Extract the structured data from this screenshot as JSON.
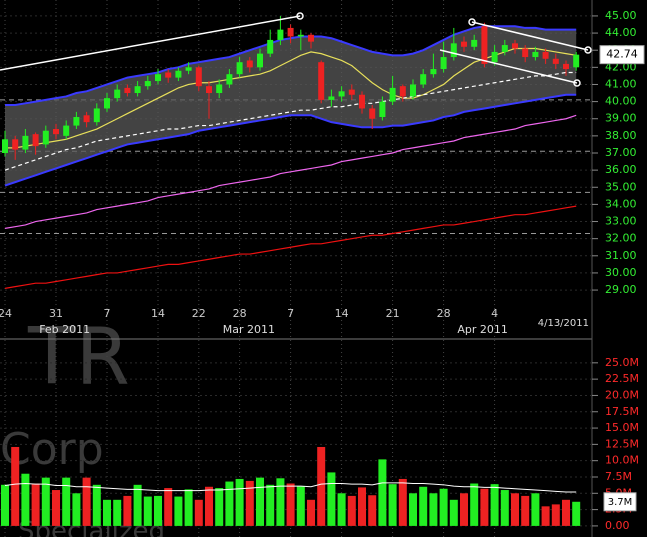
{
  "chart_data": [
    {
      "type": "candlestick",
      "categories": [
        "24",
        null,
        null,
        null,
        null,
        "31",
        null,
        null,
        null,
        null,
        "7",
        null,
        null,
        null,
        null,
        "14",
        null,
        null,
        null,
        "22",
        null,
        null,
        null,
        "28",
        null,
        null,
        null,
        null,
        "7",
        null,
        null,
        null,
        null,
        "14",
        null,
        null,
        null,
        null,
        "21",
        null,
        null,
        null,
        null,
        "28",
        null,
        null,
        null,
        null,
        "4",
        null,
        null,
        null,
        null,
        null,
        null,
        null,
        null
      ],
      "months": [
        null,
        null,
        null,
        null,
        null,
        null,
        "Feb 2011",
        null,
        null,
        null,
        null,
        null,
        null,
        null,
        null,
        null,
        null,
        null,
        null,
        null,
        null,
        null,
        null,
        null,
        "Mar 2011",
        null,
        null,
        null,
        null,
        null,
        null,
        null,
        null,
        null,
        null,
        null,
        null,
        null,
        null,
        null,
        null,
        null,
        null,
        null,
        null,
        null,
        null,
        "Apr 2011",
        null,
        null,
        null,
        null,
        null,
        null,
        null,
        null,
        null
      ],
      "last_date_label": "4/13/2011",
      "open": [
        37.0,
        37.8,
        37.2,
        38.1,
        37.5,
        38.4,
        38.0,
        38.6,
        39.2,
        38.8,
        39.6,
        40.2,
        40.8,
        40.5,
        40.9,
        41.2,
        41.7,
        41.4,
        41.8,
        42.0,
        40.9,
        40.5,
        41.0,
        41.6,
        42.4,
        42.0,
        42.8,
        43.6,
        44.3,
        43.8,
        43.9,
        42.3,
        40.1,
        40.3,
        40.7,
        40.4,
        39.6,
        39.1,
        40.0,
        40.9,
        40.3,
        41.0,
        41.6,
        41.9,
        42.6,
        43.5,
        43.2,
        44.4,
        42.3,
        42.9,
        43.4,
        43.1,
        42.6,
        42.9,
        42.5,
        42.2,
        42.0
      ],
      "high": [
        38.3,
        38.0,
        38.4,
        38.2,
        38.6,
        38.7,
        38.9,
        39.4,
        39.4,
        39.9,
        40.5,
        41.0,
        41.0,
        41.2,
        41.5,
        41.9,
        41.9,
        42.0,
        42.3,
        42.1,
        41.2,
        41.3,
        41.9,
        42.6,
        42.6,
        43.1,
        44.2,
        45.0,
        44.5,
        44.2,
        44.0,
        42.4,
        40.7,
        40.9,
        41.0,
        40.6,
        39.8,
        40.3,
        41.5,
        41.0,
        41.3,
        41.9,
        42.8,
        43.5,
        44.3,
        43.8,
        43.9,
        44.6,
        43.3,
        43.6,
        43.6,
        43.3,
        43.2,
        43.1,
        42.8,
        42.4,
        42.9
      ],
      "low": [
        36.8,
        36.6,
        37.0,
        36.9,
        37.3,
        37.8,
        37.8,
        38.4,
        38.5,
        38.6,
        39.4,
        40.0,
        40.3,
        40.3,
        40.7,
        41.0,
        41.1,
        41.2,
        41.6,
        40.6,
        39.0,
        40.2,
        40.8,
        41.4,
        41.7,
        41.8,
        42.6,
        43.3,
        43.4,
        43.0,
        43.1,
        39.9,
        39.7,
        40.0,
        40.1,
        39.3,
        38.4,
        38.9,
        39.8,
        40.0,
        40.1,
        40.8,
        41.4,
        41.7,
        42.4,
        42.9,
        43.0,
        42.0,
        42.1,
        42.7,
        42.8,
        42.3,
        42.4,
        42.2,
        41.9,
        41.5,
        41.8
      ],
      "close": [
        37.8,
        37.2,
        38.0,
        37.4,
        38.3,
        38.1,
        38.6,
        39.1,
        38.8,
        39.6,
        40.2,
        40.7,
        40.5,
        40.9,
        41.2,
        41.6,
        41.4,
        41.8,
        42.0,
        40.9,
        40.5,
        41.0,
        41.6,
        42.3,
        42.0,
        42.8,
        43.6,
        44.2,
        43.8,
        43.9,
        43.5,
        40.1,
        40.3,
        40.6,
        40.4,
        39.6,
        39.0,
        40.0,
        40.8,
        40.3,
        41.0,
        41.6,
        41.9,
        42.6,
        43.4,
        43.2,
        43.6,
        42.2,
        42.9,
        43.3,
        43.1,
        42.6,
        42.9,
        42.5,
        42.2,
        41.9,
        42.74
      ],
      "up_color": "#22ee22",
      "down_color": "#ee2222",
      "band": {
        "color": "#3a3aff",
        "fill": "#5a5a5a",
        "upper": [
          39.8,
          39.8,
          39.9,
          40.0,
          40.1,
          40.2,
          40.3,
          40.5,
          40.6,
          40.8,
          41.0,
          41.2,
          41.4,
          41.5,
          41.6,
          41.7,
          41.9,
          42.0,
          42.2,
          42.3,
          42.4,
          42.5,
          42.6,
          42.8,
          43.0,
          43.2,
          43.4,
          43.6,
          43.7,
          43.8,
          43.8,
          43.8,
          43.7,
          43.5,
          43.3,
          43.1,
          42.9,
          42.8,
          42.7,
          42.7,
          42.8,
          43.0,
          43.3,
          43.6,
          43.9,
          44.1,
          44.3,
          44.4,
          44.4,
          44.4,
          44.4,
          44.3,
          44.3,
          44.2,
          44.2,
          44.2,
          44.2
        ],
        "lower": [
          35.1,
          35.3,
          35.5,
          35.7,
          35.9,
          36.1,
          36.3,
          36.5,
          36.7,
          36.9,
          37.1,
          37.3,
          37.5,
          37.6,
          37.7,
          37.8,
          37.9,
          38.0,
          38.1,
          38.3,
          38.4,
          38.5,
          38.6,
          38.7,
          38.8,
          38.9,
          39.0,
          39.1,
          39.2,
          39.2,
          39.2,
          39.0,
          38.8,
          38.7,
          38.6,
          38.5,
          38.5,
          38.5,
          38.6,
          38.6,
          38.7,
          38.8,
          38.9,
          39.1,
          39.2,
          39.4,
          39.5,
          39.6,
          39.7,
          39.8,
          39.9,
          40.0,
          40.1,
          40.2,
          40.3,
          40.4,
          40.4
        ]
      },
      "overlays": [
        {
          "color": "#e8e05a",
          "style": "solid",
          "values": [
            37.3,
            37.3,
            37.4,
            37.5,
            37.6,
            37.7,
            37.8,
            38.0,
            38.2,
            38.4,
            38.7,
            39.0,
            39.3,
            39.6,
            39.9,
            40.2,
            40.5,
            40.8,
            41.0,
            41.1,
            41.1,
            41.2,
            41.3,
            41.4,
            41.5,
            41.6,
            41.8,
            42.1,
            42.4,
            42.7,
            42.9,
            42.8,
            42.6,
            42.4,
            42.1,
            41.6,
            41.1,
            40.7,
            40.4,
            40.2,
            40.2,
            40.4,
            40.7,
            41.0,
            41.5,
            41.9,
            42.3,
            42.5,
            42.7,
            42.9,
            43.1,
            43.1,
            43.1,
            43.0,
            42.9,
            42.8,
            42.7
          ]
        },
        {
          "color": "#ffffff",
          "style": "dashed",
          "values": [
            36.0,
            36.2,
            36.4,
            36.6,
            36.8,
            37.0,
            37.2,
            37.3,
            37.5,
            37.7,
            37.8,
            37.9,
            38.0,
            38.1,
            38.2,
            38.3,
            38.4,
            38.4,
            38.5,
            38.6,
            38.6,
            38.7,
            38.8,
            38.9,
            39.0,
            39.1,
            39.2,
            39.3,
            39.4,
            39.5,
            39.5,
            39.6,
            39.7,
            39.7,
            39.8,
            39.9,
            39.9,
            40.0,
            40.1,
            40.2,
            40.3,
            40.4,
            40.5,
            40.6,
            40.7,
            40.8,
            40.9,
            41.0,
            41.1,
            41.2,
            41.3,
            41.4,
            41.5,
            41.5,
            41.6,
            41.7,
            41.7
          ]
        },
        {
          "color": "#ee66ee",
          "style": "solid",
          "values": [
            32.6,
            32.7,
            32.8,
            33.0,
            33.1,
            33.2,
            33.3,
            33.4,
            33.5,
            33.7,
            33.8,
            33.9,
            34.0,
            34.1,
            34.2,
            34.4,
            34.5,
            34.6,
            34.7,
            34.8,
            34.9,
            35.1,
            35.2,
            35.3,
            35.4,
            35.5,
            35.6,
            35.8,
            35.9,
            36.0,
            36.1,
            36.2,
            36.3,
            36.5,
            36.6,
            36.7,
            36.8,
            36.9,
            37.0,
            37.2,
            37.3,
            37.4,
            37.5,
            37.6,
            37.7,
            37.9,
            38.0,
            38.1,
            38.2,
            38.3,
            38.4,
            38.6,
            38.7,
            38.8,
            38.9,
            39.0,
            39.2
          ]
        },
        {
          "color": "#ee1111",
          "style": "solid",
          "values": [
            29.1,
            29.2,
            29.3,
            29.4,
            29.4,
            29.5,
            29.6,
            29.7,
            29.8,
            29.9,
            30.0,
            30.0,
            30.1,
            30.2,
            30.3,
            30.4,
            30.5,
            30.5,
            30.6,
            30.7,
            30.8,
            30.9,
            31.0,
            31.1,
            31.1,
            31.2,
            31.3,
            31.4,
            31.5,
            31.6,
            31.7,
            31.7,
            31.8,
            31.9,
            32.0,
            32.1,
            32.2,
            32.2,
            32.3,
            32.4,
            32.5,
            32.6,
            32.7,
            32.8,
            32.8,
            32.9,
            33.0,
            33.1,
            33.2,
            33.3,
            33.4,
            33.4,
            33.5,
            33.6,
            33.7,
            33.8,
            33.9
          ]
        }
      ],
      "hlines": [
        40.1,
        37.1,
        34.7,
        32.3
      ],
      "ylim": [
        28.42,
        45.93
      ],
      "yticks": [
        {
          "value": 29,
          "label": "29.00"
        },
        {
          "value": 30,
          "label": "30.00"
        },
        {
          "value": 31,
          "label": "31.00"
        },
        {
          "value": 32,
          "label": "32.00"
        },
        {
          "value": 33,
          "label": "33.00"
        },
        {
          "value": 34,
          "label": "34.00"
        },
        {
          "value": 35,
          "label": "35.00"
        },
        {
          "value": 36,
          "label": "36.00"
        },
        {
          "value": 37,
          "label": "37.00"
        },
        {
          "value": 38,
          "label": "38.00"
        },
        {
          "value": 39,
          "label": "39.00"
        },
        {
          "value": 40,
          "label": "40.00"
        },
        {
          "value": 41,
          "label": "41.00"
        },
        {
          "value": 42,
          "label": "42.00"
        },
        {
          "value": 43,
          "label": "43.00"
        },
        {
          "value": 44,
          "label": "44.00"
        },
        {
          "value": 45,
          "label": "45.00"
        }
      ],
      "tick_color": "#33ee33",
      "grid": true
    },
    {
      "type": "bar",
      "values": [
        6.3,
        12.1,
        8.0,
        6.5,
        7.4,
        5.5,
        7.4,
        5.0,
        7.4,
        6.3,
        4.0,
        4.0,
        4.6,
        6.3,
        4.5,
        4.6,
        5.8,
        4.5,
        5.6,
        4.0,
        6.0,
        5.8,
        6.8,
        7.2,
        6.9,
        7.4,
        6.3,
        7.3,
        6.5,
        6.1,
        4.0,
        12.1,
        8.2,
        5.0,
        4.6,
        5.9,
        4.7,
        10.2,
        6.4,
        7.2,
        5.0,
        6.0,
        5.0,
        5.7,
        4.0,
        5.0,
        6.5,
        5.7,
        6.4,
        5.5,
        5.0,
        4.6,
        5.0,
        3.0,
        3.3,
        4.0,
        3.7
      ],
      "last_value_label": "3.7M",
      "average": {
        "color": "#ffffff",
        "values": [
          6.2,
          6.4,
          6.5,
          6.4,
          6.4,
          6.2,
          6.2,
          6.0,
          6.0,
          5.9,
          5.8,
          5.7,
          5.6,
          5.6,
          5.5,
          5.4,
          5.4,
          5.4,
          5.4,
          5.4,
          5.5,
          5.5,
          5.6,
          5.7,
          5.8,
          5.9,
          6.0,
          6.1,
          6.1,
          6.1,
          6.0,
          6.4,
          6.5,
          6.5,
          6.4,
          6.4,
          6.3,
          6.6,
          6.6,
          6.6,
          6.5,
          6.5,
          6.4,
          6.3,
          6.1,
          6.0,
          6.0,
          5.9,
          5.9,
          5.8,
          5.7,
          5.6,
          5.5,
          5.4,
          5.3,
          5.2,
          5.2
        ]
      },
      "ylim": [
        -1.7,
        28.5
      ],
      "yticks": [
        {
          "value": 0,
          "label": "0.00"
        },
        {
          "value": 2.5,
          "label": "2.5M"
        },
        {
          "value": 5,
          "label": "5.0M"
        },
        {
          "value": 7.5,
          "label": "7.5M"
        },
        {
          "value": 10,
          "label": "10.0M"
        },
        {
          "value": 12.5,
          "label": "12.5M"
        },
        {
          "value": 15,
          "label": "15.0M"
        },
        {
          "value": 17.5,
          "label": "17.5M"
        },
        {
          "value": 20,
          "label": "20.0M"
        },
        {
          "value": 22.5,
          "label": "22.5M"
        },
        {
          "value": 25,
          "label": "25.0M"
        }
      ],
      "tick_color": "#ff2a2a",
      "grid": true
    }
  ],
  "watermark": {
    "symbol": "TR",
    "name": "Corp",
    "sector": "Specialized"
  }
}
